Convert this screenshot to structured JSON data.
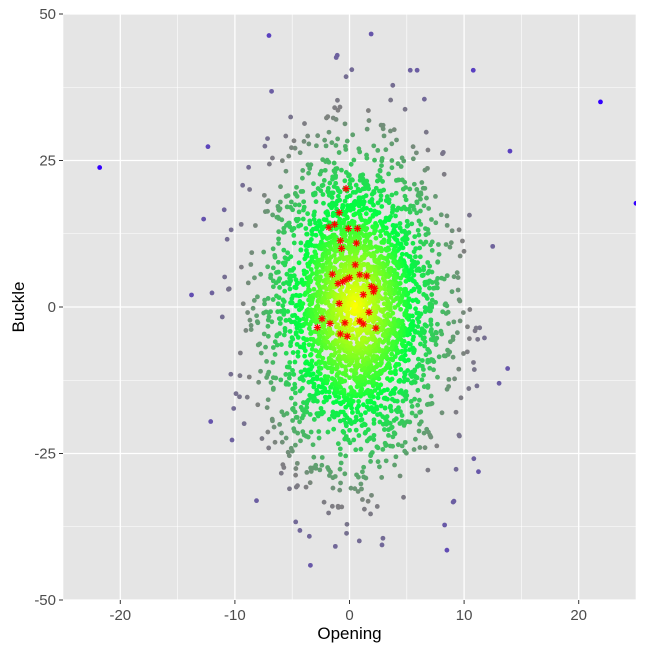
{
  "chart_data": {
    "type": "scatter",
    "xlabel": "Opening",
    "ylabel": "Buckle",
    "xlim": [
      -25,
      25
    ],
    "ylim": [
      -50,
      50
    ],
    "x_ticks": [
      -20,
      -10,
      0,
      10,
      20
    ],
    "y_ticks": [
      -50,
      -25,
      0,
      25,
      50
    ],
    "x_tick_labels": [
      "-20",
      "-10",
      "0",
      "10",
      "20"
    ],
    "y_tick_labels": [
      "-50",
      "-25",
      "0",
      "25",
      "50"
    ],
    "grid": true,
    "legend": "none",
    "colors": {
      "panel": "#e5e5e5",
      "grid": "#ffffff",
      "center": "#ffff00",
      "mid": "#00ff40",
      "outer": "#808080",
      "extreme": "#3300ff",
      "highlight": "#ff0000"
    },
    "background_points": {
      "description_count": 3000,
      "x_mean": 0.5,
      "x_sd": 3.8,
      "y_mean": 0,
      "y_sd": 13
    },
    "outlier_points": [
      {
        "x": -21.8,
        "y": 23.8
      },
      {
        "x": -6.8,
        "y": 36.8
      },
      {
        "x": -0.3,
        "y": 39.3
      },
      {
        "x": 0.2,
        "y": 40.5
      },
      {
        "x": 5.3,
        "y": 40.4
      },
      {
        "x": 5.9,
        "y": 40.4
      },
      {
        "x": 10.8,
        "y": 40.4
      },
      {
        "x": 21.9,
        "y": 35.0
      },
      {
        "x": 25.0,
        "y": 17.7
      },
      {
        "x": -12.0,
        "y": 2.4
      },
      {
        "x": -11.1,
        "y": -1.7
      },
      {
        "x": 13.8,
        "y": -10.5
      },
      {
        "x": 14.0,
        "y": 26.6
      },
      {
        "x": 8.3,
        "y": -37.2
      },
      {
        "x": 8.5,
        "y": -41.5
      },
      {
        "x": -1.0,
        "y": -34.0
      },
      {
        "x": 1.3,
        "y": -34.5
      },
      {
        "x": 9.3,
        "y": -27.7
      },
      {
        "x": -4.7,
        "y": -28.7
      }
    ],
    "highlighted_points": [
      {
        "x": -0.3,
        "y": 20.2
      },
      {
        "x": -0.9,
        "y": 16.1
      },
      {
        "x": -1.8,
        "y": 13.6
      },
      {
        "x": -1.3,
        "y": 14.1
      },
      {
        "x": -0.1,
        "y": 13.4
      },
      {
        "x": 0.7,
        "y": 13.4
      },
      {
        "x": -0.8,
        "y": 11.3
      },
      {
        "x": 0.6,
        "y": 10.9
      },
      {
        "x": -0.7,
        "y": 10.0
      },
      {
        "x": 0.5,
        "y": 7.2
      },
      {
        "x": -1.5,
        "y": 5.6
      },
      {
        "x": 0.9,
        "y": 5.5
      },
      {
        "x": 1.5,
        "y": 5.3
      },
      {
        "x": -0.3,
        "y": 4.7
      },
      {
        "x": 0.0,
        "y": 5.0
      },
      {
        "x": -0.6,
        "y": 4.3
      },
      {
        "x": -1.0,
        "y": 4.0
      },
      {
        "x": 1.9,
        "y": 3.5
      },
      {
        "x": 2.2,
        "y": 3.2
      },
      {
        "x": 2.1,
        "y": 2.6
      },
      {
        "x": 1.2,
        "y": 2.1
      },
      {
        "x": -0.9,
        "y": 0.6
      },
      {
        "x": 1.7,
        "y": -0.9
      },
      {
        "x": -2.4,
        "y": -2.0
      },
      {
        "x": -1.7,
        "y": -2.8
      },
      {
        "x": -0.4,
        "y": -2.7
      },
      {
        "x": 0.9,
        "y": -2.4
      },
      {
        "x": 1.2,
        "y": -2.9
      },
      {
        "x": 2.3,
        "y": -3.6
      },
      {
        "x": -2.8,
        "y": -3.5
      },
      {
        "x": -0.8,
        "y": -4.6
      },
      {
        "x": -0.2,
        "y": -5.0
      }
    ]
  }
}
